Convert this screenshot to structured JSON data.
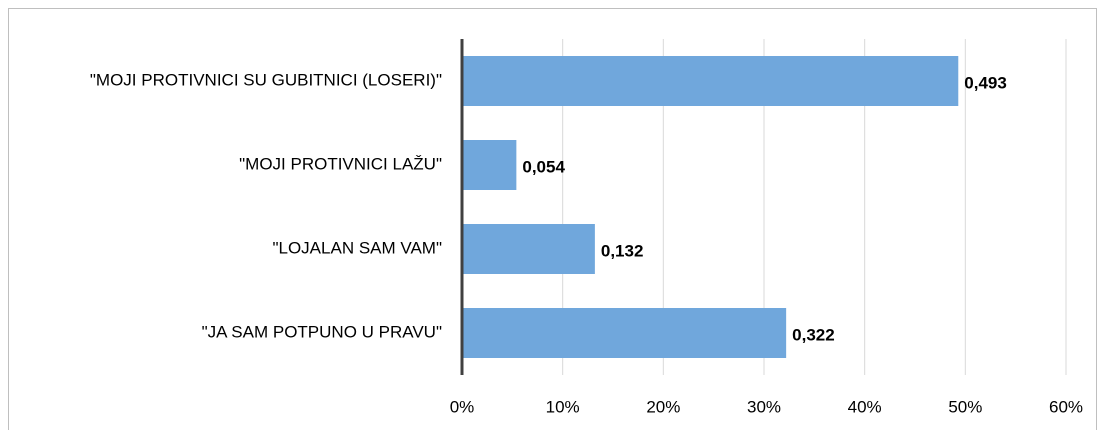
{
  "chart_data": {
    "type": "bar",
    "orientation": "horizontal",
    "categories": [
      "\"MOJI PROTIVNICI SU GUBITNICI (LOSERI)\"",
      "\"MOJI PROTIVNICI LAŽU\"",
      "\"LOJALAN SAM VAM\"",
      "\"JA SAM POTPUNO U PRAVU\""
    ],
    "values": [
      49.3,
      5.4,
      13.2,
      32.2
    ],
    "value_labels": [
      "0,493",
      "0,054",
      "0,132",
      "0,322"
    ],
    "color": "#70a7dc",
    "xlim": [
      0,
      60
    ],
    "xticks": [
      {
        "value": 0,
        "label": "0%"
      },
      {
        "value": 10,
        "label": "10%"
      },
      {
        "value": 20,
        "label": "20%"
      },
      {
        "value": 30,
        "label": "30%"
      },
      {
        "value": 40,
        "label": "40%"
      },
      {
        "value": 50,
        "label": "50%"
      },
      {
        "value": 60,
        "label": "60%"
      }
    ],
    "grid": true
  }
}
